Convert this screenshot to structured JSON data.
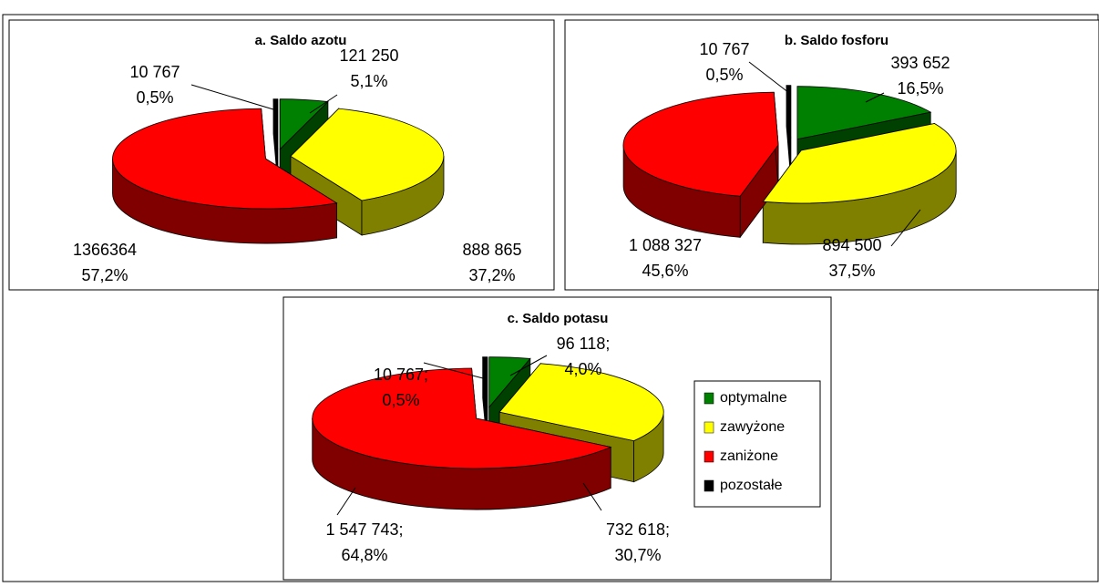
{
  "chart_data": [
    {
      "type": "pie3d",
      "title": "a. Saldo azotu",
      "values": [
        121250,
        888865,
        1366364,
        10767
      ],
      "value_labels": [
        "121 250",
        "888 865",
        "1366364",
        "10 767"
      ],
      "percent_labels": [
        "5,1%",
        "37,2%",
        "57,2%",
        "0,5%"
      ],
      "colors": [
        "#008000",
        "#ffff00",
        "#ff0000",
        "#000000"
      ]
    },
    {
      "type": "pie3d",
      "title": "b. Saldo fosforu",
      "values": [
        393652,
        894500,
        1088327,
        10767
      ],
      "value_labels": [
        "393 652",
        "894 500",
        "1 088 327",
        "10 767"
      ],
      "percent_labels": [
        "16,5%",
        "37,5%",
        "45,6%",
        "0,5%"
      ],
      "colors": [
        "#008000",
        "#ffff00",
        "#ff0000",
        "#000000"
      ]
    },
    {
      "type": "pie3d",
      "title": "c. Saldo potasu",
      "categories": [
        "optymalne",
        "zawyżone",
        "zaniżone",
        "pozostałe"
      ],
      "values": [
        96118,
        732618,
        1547743,
        10767
      ],
      "value_labels": [
        "96 118;",
        "732 618;",
        "1 547 743;",
        "10 767;"
      ],
      "percent_labels": [
        "4,0%",
        "30,7%",
        "64,8%",
        "0,5%"
      ],
      "colors": [
        "#008000",
        "#ffff00",
        "#ff0000",
        "#000000"
      ],
      "legend": "right"
    }
  ]
}
